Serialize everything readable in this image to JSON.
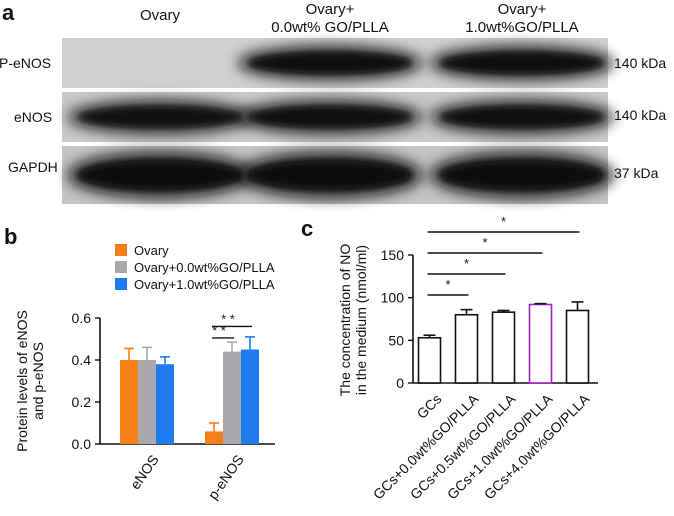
{
  "panels": {
    "a": {
      "label": "a",
      "columns": [
        "Ovary",
        "Ovary+",
        "0.0wt% GO/PLLA",
        "Ovary+",
        "1.0wt%GO/PLLA"
      ],
      "rows": [
        {
          "name": "P-eNOS",
          "size": "140 kDa"
        },
        {
          "name": "eNOS",
          "size": "140 kDa"
        },
        {
          "name": "GAPDH",
          "size": "37 kDa"
        }
      ],
      "band_intensity": [
        [
          0.0,
          0.95,
          0.95
        ],
        [
          0.85,
          0.9,
          0.9
        ],
        [
          1.0,
          1.0,
          1.0
        ]
      ]
    },
    "b": {
      "label": "b"
    },
    "c": {
      "label": "c"
    }
  },
  "chart_data": [
    {
      "panel": "b",
      "type": "bar",
      "categories": [
        "eNOS",
        "p-eNOS"
      ],
      "series": [
        {
          "name": "Ovary",
          "color": "#f57f17",
          "values": [
            0.4,
            0.06
          ],
          "errors": [
            0.055,
            0.04
          ]
        },
        {
          "name": "Ovary+0.0wt%GO/PLLA",
          "color": "#a9a9ad",
          "values": [
            0.4,
            0.44
          ],
          "errors": [
            0.06,
            0.045
          ]
        },
        {
          "name": "Ovary+1.0wt%GO/PLLA",
          "color": "#1e7bf0",
          "values": [
            0.38,
            0.45
          ],
          "errors": [
            0.035,
            0.06
          ]
        }
      ],
      "ylabel": "Protein levels of eNOS and p-eNOS",
      "ylabel_lines": [
        "Protein levels of eNOS",
        "and p-eNOS"
      ],
      "ylim": [
        0,
        0.6
      ],
      "yticks": [
        "0.0",
        "0.2",
        "0.4",
        "0.6"
      ],
      "legend_position": "top",
      "significance": [
        {
          "label": "* *",
          "from_series": 0,
          "to_series": 2,
          "category": 1
        },
        {
          "label": "* *",
          "from_series": 0,
          "to_series": 1,
          "category": 1
        }
      ]
    },
    {
      "panel": "c",
      "type": "bar",
      "categories": [
        "GCs",
        "GCs+0.0wt%GO/PLLA",
        "GCs+0.5wt%GO/PLLA",
        "GCs+1.0wt%GO/PLLA",
        "GCs+4.0wt%GO/PLLA"
      ],
      "values": [
        53,
        80,
        83,
        92,
        85
      ],
      "errors": [
        3,
        6,
        2,
        1,
        10
      ],
      "bar_edge_colors": [
        "#111111",
        "#111111",
        "#111111",
        "#a020c0",
        "#111111"
      ],
      "ylabel": "The concentration of NO in the medium (nmol/ml)",
      "ylabel_lines": [
        "The concentration of NO",
        "in the medium (nmol/ml)"
      ],
      "ylim": [
        0,
        150
      ],
      "yticks": [
        "0",
        "50",
        "100",
        "150"
      ],
      "significance": [
        {
          "label": "*",
          "from": 0,
          "to": 4
        },
        {
          "label": "*",
          "from": 0,
          "to": 3
        },
        {
          "label": "*",
          "from": 0,
          "to": 2
        },
        {
          "label": "*",
          "from": 0,
          "to": 1
        }
      ]
    }
  ]
}
